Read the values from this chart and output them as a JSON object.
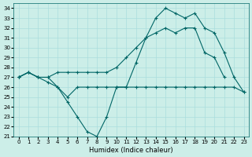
{
  "xlabel": "Humidex (Indice chaleur)",
  "ylabel": "",
  "background_color": "#cceee8",
  "line_color": "#006666",
  "grid_color": "#aadddd",
  "ylim": [
    21,
    34.5
  ],
  "xlim": [
    -0.5,
    23.5
  ],
  "yticks": [
    21,
    22,
    23,
    24,
    25,
    26,
    27,
    28,
    29,
    30,
    31,
    32,
    33,
    34
  ],
  "xticks": [
    0,
    1,
    2,
    3,
    4,
    5,
    6,
    7,
    8,
    9,
    10,
    11,
    12,
    13,
    14,
    15,
    16,
    17,
    18,
    19,
    20,
    21,
    22,
    23
  ],
  "line1": [
    27,
    27.5,
    27,
    27,
    26,
    24.5,
    23,
    21.5,
    21,
    23,
    26,
    26,
    28.5,
    31,
    31.5,
    32,
    31.5,
    32,
    32,
    29.5,
    29,
    27,
    null,
    null
  ],
  "line2": [
    27,
    27.5,
    27,
    26.5,
    26,
    25,
    26,
    26,
    26,
    26,
    26,
    26,
    26,
    26,
    26,
    26,
    26,
    26,
    26,
    26,
    26,
    26,
    26,
    25.5
  ],
  "line3": [
    27,
    27.5,
    27,
    27,
    27.5,
    27.5,
    27.5,
    27.5,
    27.5,
    27.5,
    28,
    29,
    30,
    31,
    33,
    34,
    33.5,
    33,
    33.5,
    32,
    31.5,
    29.5,
    27,
    25.5
  ]
}
